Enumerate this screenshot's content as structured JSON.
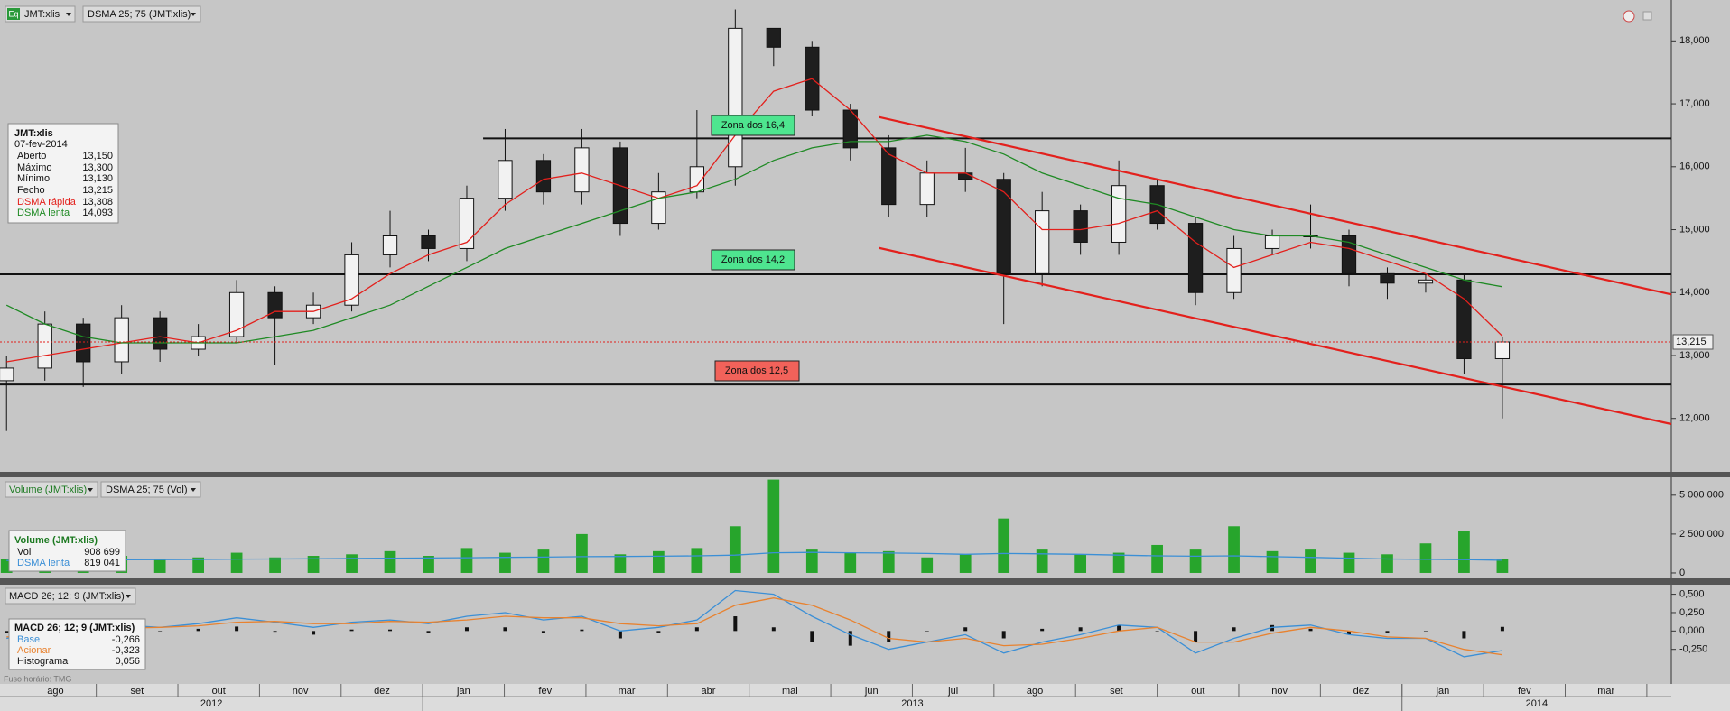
{
  "toolbar": {
    "icon": "Eq",
    "symbol": "JMT:xlis",
    "indicator": "DSMA 25; 75 (JMT:xlis)"
  },
  "timezone": "Fuso horário: TMG",
  "chart_data": [
    {
      "type": "candlestick",
      "x": [
        0.4,
        0.87,
        1.34,
        1.81,
        2.28,
        2.75,
        3.22,
        3.69,
        4.16,
        4.63,
        5.1,
        5.57,
        6.04,
        6.51,
        6.98,
        7.45,
        7.92,
        8.39,
        8.86,
        9.33,
        9.8,
        10.27,
        10.74,
        11.21,
        11.68,
        12.15,
        12.62,
        13.09,
        13.56,
        14.03,
        14.5,
        14.97,
        15.44,
        15.91,
        16.38,
        16.85,
        17.32,
        17.79,
        18.26,
        18.73
      ],
      "xlim": [
        0.32,
        20.8
      ],
      "xticks": [
        {
          "value": 1,
          "label": "ago"
        },
        {
          "value": 2,
          "label": "set"
        },
        {
          "value": 3,
          "label": "out"
        },
        {
          "value": 4,
          "label": "nov"
        },
        {
          "value": 5,
          "label": "dez"
        },
        {
          "value": 6,
          "label": "jan"
        },
        {
          "value": 7,
          "label": "fev"
        },
        {
          "value": 8,
          "label": "mar"
        },
        {
          "value": 9,
          "label": "abr"
        },
        {
          "value": 10,
          "label": "mai"
        },
        {
          "value": 11,
          "label": "jun"
        },
        {
          "value": 12,
          "label": "jul"
        },
        {
          "value": 13,
          "label": "ago"
        },
        {
          "value": 14,
          "label": "set"
        },
        {
          "value": 15,
          "label": "out"
        },
        {
          "value": 16,
          "label": "nov"
        },
        {
          "value": 17,
          "label": "dez"
        },
        {
          "value": 18,
          "label": "jan"
        },
        {
          "value": 19,
          "label": "fev"
        },
        {
          "value": 20,
          "label": "mar"
        }
      ],
      "years": [
        {
          "label": "2012",
          "from": 0.32
        },
        {
          "label": "2013",
          "from": 5.5
        },
        {
          "label": "2014",
          "from": 17.5
        }
      ],
      "open": [
        12.6,
        12.8,
        13.5,
        12.9,
        13.6,
        13.1,
        13.3,
        14.0,
        13.6,
        13.8,
        14.6,
        14.9,
        14.7,
        15.5,
        16.1,
        15.6,
        16.3,
        15.1,
        15.6,
        16.0,
        18.2,
        17.9,
        16.9,
        16.3,
        15.4,
        15.9,
        15.8,
        14.3,
        15.3,
        14.8,
        15.7,
        15.1,
        14.0,
        14.7,
        14.9,
        14.9,
        14.3,
        14.15,
        14.2,
        12.95
      ],
      "high": [
        13.0,
        13.7,
        13.6,
        13.8,
        13.7,
        13.5,
        14.2,
        14.1,
        14.0,
        14.8,
        15.3,
        15.0,
        15.7,
        16.6,
        16.2,
        16.6,
        16.4,
        15.9,
        16.9,
        18.5,
        18.2,
        18.0,
        17.0,
        16.5,
        16.1,
        16.3,
        15.9,
        15.6,
        15.4,
        16.1,
        15.8,
        15.2,
        14.9,
        15.0,
        15.4,
        15.0,
        14.4,
        14.3,
        14.3,
        13.3
      ],
      "low": [
        11.8,
        12.6,
        12.5,
        12.7,
        12.9,
        13.0,
        13.2,
        12.85,
        13.5,
        13.7,
        14.4,
        14.5,
        14.5,
        15.3,
        15.4,
        15.4,
        14.9,
        15.0,
        15.5,
        15.7,
        17.6,
        16.8,
        16.1,
        15.2,
        15.2,
        15.6,
        13.5,
        14.1,
        14.6,
        14.6,
        15.0,
        13.8,
        13.9,
        14.6,
        14.7,
        14.1,
        13.9,
        14.0,
        12.7,
        12.0
      ],
      "close": [
        12.8,
        13.5,
        12.9,
        13.6,
        13.1,
        13.3,
        14.0,
        13.6,
        13.8,
        14.6,
        14.9,
        14.7,
        15.5,
        16.1,
        15.6,
        16.3,
        15.1,
        15.6,
        16.0,
        18.2,
        17.9,
        16.9,
        16.3,
        15.4,
        15.9,
        15.8,
        14.3,
        15.3,
        14.8,
        15.7,
        15.1,
        14.0,
        14.7,
        14.9,
        14.9,
        14.3,
        14.15,
        14.2,
        12.95,
        13.215
      ],
      "up_color": "#f2f2f2",
      "down_color": "#1e1e1e",
      "series": [
        {
          "name": "DSMA rápida",
          "color": "#e3201c",
          "label": "13,308",
          "values": [
            12.9,
            13.0,
            13.1,
            13.2,
            13.3,
            13.2,
            13.4,
            13.7,
            13.7,
            13.9,
            14.3,
            14.6,
            14.8,
            15.4,
            15.8,
            15.9,
            15.7,
            15.5,
            15.7,
            16.5,
            17.2,
            17.4,
            16.9,
            16.2,
            15.9,
            15.9,
            15.6,
            15.0,
            15.0,
            15.1,
            15.3,
            14.8,
            14.4,
            14.6,
            14.8,
            14.7,
            14.5,
            14.3,
            13.9,
            13.308
          ]
        },
        {
          "name": "DSMA lenta",
          "color": "#1f8a24",
          "label": "14,093",
          "values": [
            13.8,
            13.5,
            13.3,
            13.2,
            13.2,
            13.2,
            13.2,
            13.3,
            13.4,
            13.6,
            13.8,
            14.1,
            14.4,
            14.7,
            14.9,
            15.1,
            15.3,
            15.5,
            15.6,
            15.8,
            16.1,
            16.3,
            16.4,
            16.4,
            16.5,
            16.4,
            16.2,
            15.9,
            15.7,
            15.5,
            15.4,
            15.2,
            15.0,
            14.9,
            14.9,
            14.8,
            14.6,
            14.4,
            14.2,
            14.093
          ]
        }
      ],
      "ylim": [
        11.15,
        18.65
      ],
      "yticks": [
        {
          "value": 12,
          "label": "12,000"
        },
        {
          "value": 13,
          "label": "13,000"
        },
        {
          "value": 14,
          "label": "14,000"
        },
        {
          "value": 15,
          "label": "15,000"
        },
        {
          "value": 16,
          "label": "16,000"
        },
        {
          "value": 17,
          "label": "17,000"
        },
        {
          "value": 18,
          "label": "18,000"
        }
      ],
      "levels": [
        {
          "value": 16.45,
          "from": 6.24
        },
        {
          "value": 14.29
        },
        {
          "value": 12.54
        }
      ],
      "trend_color": "#e3201c",
      "trendlines": [
        {
          "x": [
            11.09,
            20.8
          ],
          "y": [
            16.79,
            13.97
          ]
        },
        {
          "x": [
            11.09,
            20.8
          ],
          "y": [
            14.71,
            11.91
          ]
        }
      ],
      "last": {
        "value": 13.215,
        "label": "13,215"
      },
      "zones": [
        {
          "text": "Zona dos 16,4",
          "color": "#4ee58f"
        },
        {
          "text": "Zona dos 14,2",
          "color": "#4ee58f"
        },
        {
          "text": "Zona dos 12,5",
          "color": "#f2625a"
        }
      ],
      "info": {
        "title": "JMT:xlis",
        "date": "07-fev-2014",
        "rows": [
          {
            "name": "Aberto",
            "value": "13,150"
          },
          {
            "name": "Máximo",
            "value": "13,300"
          },
          {
            "name": "Mínimo",
            "value": "13,130"
          },
          {
            "name": "Fecho",
            "value": "13,215"
          }
        ]
      }
    },
    {
      "type": "bar",
      "title": "Volume (JMT:xlis)",
      "indicator": "DSMA 25; 75 (Vol)",
      "value_name": "Vol",
      "value_label": "908 699",
      "color": "#27a52c",
      "values": [
        900000,
        1000000,
        800000,
        1100000,
        900000,
        1000000,
        1300000,
        1000000,
        1100000,
        1200000,
        1400000,
        1100000,
        1600000,
        1300000,
        1500000,
        2500000,
        1200000,
        1400000,
        1600000,
        3000000,
        6000000,
        1500000,
        1300000,
        1400000,
        1000000,
        1200000,
        3500000,
        1500000,
        1200000,
        1300000,
        1800000,
        1500000,
        3000000,
        1400000,
        1500000,
        1300000,
        1200000,
        1900000,
        2700000,
        908699
      ],
      "series": [
        {
          "name": "DSMA lenta",
          "color": "#3b8fd6",
          "label": "819 041",
          "values": [
            800000,
            820000,
            830000,
            850000,
            860000,
            870000,
            890000,
            900000,
            910000,
            930000,
            950000,
            960000,
            980000,
            1000000,
            1020000,
            1050000,
            1060000,
            1080000,
            1100000,
            1150000,
            1300000,
            1320000,
            1300000,
            1280000,
            1250000,
            1200000,
            1250000,
            1230000,
            1200000,
            1150000,
            1100000,
            1080000,
            1100000,
            1050000,
            1000000,
            950000,
            900000,
            880000,
            860000,
            819041
          ]
        }
      ],
      "ylim": [
        -350000,
        6150000
      ],
      "yticks": [
        0,
        {
          "value": 2500000,
          "label": "2 500 000"
        },
        {
          "value": 5000000,
          "label": "5 000 000"
        }
      ]
    },
    {
      "type": "line",
      "title": "MACD 26; 12; 9 (JMT:xlis)",
      "series": [
        {
          "name": "Base",
          "color": "#3b8fd6",
          "label": "-0,266",
          "values": [
            -0.1,
            0.0,
            0.05,
            0.08,
            0.05,
            0.1,
            0.18,
            0.12,
            0.05,
            0.12,
            0.15,
            0.1,
            0.2,
            0.25,
            0.15,
            0.2,
            0.0,
            0.05,
            0.15,
            0.55,
            0.5,
            0.2,
            -0.05,
            -0.25,
            -0.15,
            -0.05,
            -0.3,
            -0.15,
            -0.05,
            0.08,
            0.05,
            -0.3,
            -0.1,
            0.05,
            0.08,
            -0.05,
            -0.1,
            -0.1,
            -0.35,
            -0.266
          ]
        },
        {
          "name": "Acionar",
          "color": "#e8822f",
          "label": "-0,323",
          "values": [
            -0.08,
            -0.05,
            0.0,
            0.04,
            0.05,
            0.07,
            0.12,
            0.13,
            0.1,
            0.1,
            0.13,
            0.12,
            0.15,
            0.2,
            0.18,
            0.18,
            0.1,
            0.07,
            0.1,
            0.35,
            0.45,
            0.35,
            0.15,
            -0.1,
            -0.15,
            -0.1,
            -0.2,
            -0.18,
            -0.1,
            0.0,
            0.05,
            -0.15,
            -0.15,
            -0.03,
            0.05,
            0.0,
            -0.08,
            -0.1,
            -0.25,
            -0.323
          ]
        }
      ],
      "histogram": {
        "name": "Histograma",
        "color": "#111111",
        "label": "0,056",
        "values": [
          -0.02,
          0.05,
          0.05,
          0.04,
          0.0,
          0.03,
          0.06,
          -0.01,
          -0.05,
          0.02,
          0.02,
          -0.02,
          0.05,
          0.05,
          -0.03,
          0.02,
          -0.1,
          -0.02,
          0.05,
          0.2,
          0.05,
          -0.15,
          -0.2,
          -0.15,
          0.0,
          0.05,
          -0.1,
          0.03,
          0.05,
          0.08,
          0.0,
          -0.15,
          0.05,
          0.08,
          0.03,
          -0.05,
          -0.02,
          0.0,
          -0.1,
          0.056
        ]
      },
      "ylim": [
        -0.72,
        0.63
      ],
      "yticks": [
        {
          "value": 0.5,
          "label": "0,500"
        },
        {
          "value": 0.25,
          "label": "0,250"
        },
        {
          "value": 0,
          "label": "0,000"
        },
        {
          "value": -0.25,
          "label": "-0,250"
        }
      ]
    }
  ]
}
